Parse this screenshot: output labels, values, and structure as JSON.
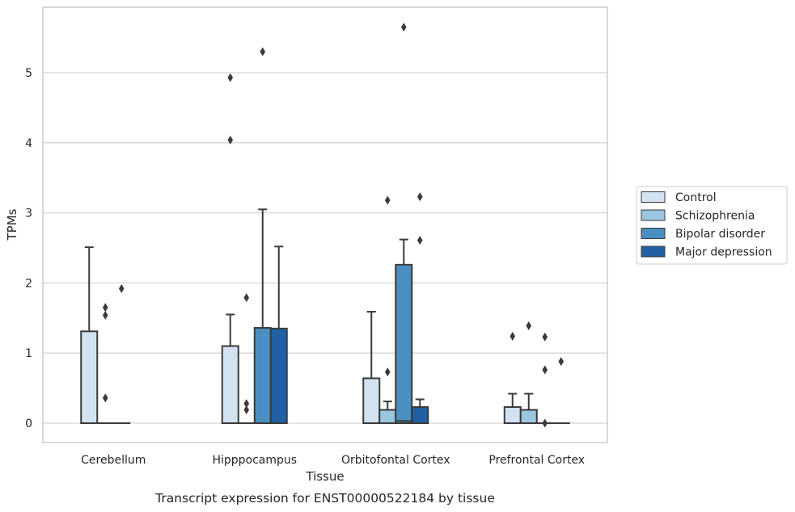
{
  "chart_data": {
    "type": "box",
    "caption": "Transcript expression for ENST00000522184 by tissue",
    "xlabel": "Tissue",
    "ylabel": "TPMs",
    "ylim": [
      -0.27,
      5.95
    ],
    "yticks": [
      0,
      1,
      2,
      3,
      4,
      5
    ],
    "grid": "horizontal",
    "legend_position": "right",
    "categories": [
      "Cerebellum",
      "Hipppocampus",
      "Orbitofontal Cortex",
      "Prefrontal Cortex"
    ],
    "series": [
      {
        "name": "Control",
        "color": "#d2e2f1",
        "boxes": [
          {
            "q1": 0,
            "median": 0,
            "q3": 1.31,
            "whisker_low": 0,
            "whisker_high": 2.51,
            "outliers": []
          },
          {
            "q1": 0,
            "median": 0,
            "q3": 1.1,
            "whisker_low": 0,
            "whisker_high": 1.55,
            "outliers": [
              4.04,
              4.93
            ]
          },
          {
            "q1": 0,
            "median": 0,
            "q3": 0.64,
            "whisker_low": 0,
            "whisker_high": 1.59,
            "outliers": []
          },
          {
            "q1": 0,
            "median": 0,
            "q3": 0.23,
            "whisker_low": 0,
            "whisker_high": 0.42,
            "outliers": [
              1.24
            ]
          }
        ]
      },
      {
        "name": "Schizophrenia",
        "color": "#9ac7e0",
        "boxes": [
          {
            "q1": 0,
            "median": 0,
            "q3": 0,
            "whisker_low": 0,
            "whisker_high": 0,
            "outliers": [
              0.36,
              1.54,
              1.65
            ]
          },
          {
            "q1": 0,
            "median": 0,
            "q3": 0,
            "whisker_low": 0,
            "whisker_high": 0,
            "outliers": [
              0.19,
              0.28,
              1.79
            ]
          },
          {
            "q1": 0,
            "median": 0,
            "q3": 0.19,
            "whisker_low": 0,
            "whisker_high": 0.31,
            "outliers": [
              0.73,
              3.18
            ]
          },
          {
            "q1": 0,
            "median": 0,
            "q3": 0.19,
            "whisker_low": 0,
            "whisker_high": 0.42,
            "outliers": [
              1.39
            ]
          }
        ]
      },
      {
        "name": "Bipolar disorder",
        "color": "#4a8fc1",
        "boxes": [
          {
            "q1": 0,
            "median": 0,
            "q3": 0,
            "whisker_low": 0,
            "whisker_high": 0,
            "outliers": [
              1.92
            ]
          },
          {
            "q1": 0,
            "median": 0,
            "q3": 1.36,
            "whisker_low": 0,
            "whisker_high": 3.05,
            "outliers": [
              5.3
            ]
          },
          {
            "q1": 0,
            "median": 0.03,
            "q3": 2.26,
            "whisker_low": 0,
            "whisker_high": 2.62,
            "outliers": [
              5.65
            ]
          },
          {
            "q1": 0,
            "median": 0,
            "q3": 0,
            "whisker_low": 0,
            "whisker_high": 0,
            "outliers": [
              0,
              0.76,
              1.23
            ]
          }
        ]
      },
      {
        "name": "Major depression",
        "color": "#1f61a4",
        "boxes": [
          null,
          {
            "q1": 0,
            "median": 0,
            "q3": 1.35,
            "whisker_low": 0,
            "whisker_high": 2.52,
            "outliers": []
          },
          {
            "q1": 0,
            "median": 0,
            "q3": 0.23,
            "whisker_low": 0,
            "whisker_high": 0.34,
            "outliers": [
              2.61,
              3.23
            ]
          },
          {
            "q1": 0,
            "median": 0,
            "q3": 0,
            "whisker_low": 0,
            "whisker_high": 0,
            "outliers": [
              0.88
            ]
          }
        ]
      }
    ]
  }
}
